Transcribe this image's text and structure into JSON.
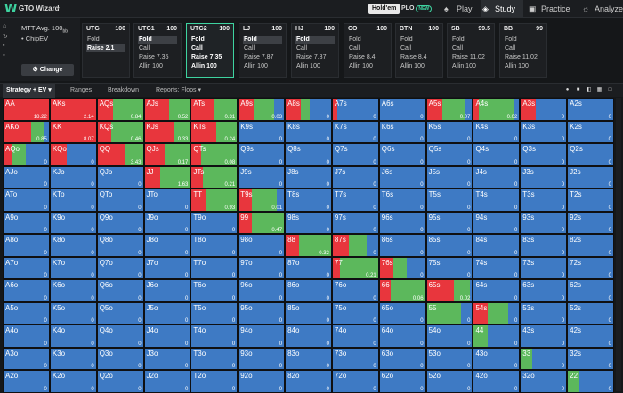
{
  "header": {
    "logo_icon": "W",
    "brand": "GTO Wizard",
    "brand_menu_icon": "chevron-down-icon",
    "game_holdem": "Hold'em",
    "game_plo": "PLO",
    "plo_badge": "NEW",
    "nav": [
      {
        "label": "Play",
        "icon": "spade-icon",
        "active": false
      },
      {
        "label": "Study",
        "icon": "stack-icon",
        "active": true
      },
      {
        "label": "Practice",
        "icon": "controller-icon",
        "active": false
      },
      {
        "label": "Analyze",
        "icon": "bulb-icon",
        "active": false
      }
    ]
  },
  "left_panel": {
    "format": "MTT",
    "depth": "Avg. 100",
    "depth_unit": "bb",
    "model": "ChipEV",
    "change_label": "Change",
    "change_icon": "gear-icon"
  },
  "positions": [
    {
      "name": "UTG",
      "stack": "100",
      "actions": [
        "Fold",
        "Raise 2.1"
      ],
      "selected": 1,
      "active": false
    },
    {
      "name": "UTG1",
      "stack": "100",
      "actions": [
        "Fold",
        "Call",
        "Raise 7.35",
        "Allin 100"
      ],
      "selected": 0,
      "active": false
    },
    {
      "name": "UTG2",
      "stack": "100",
      "actions": [
        "Fold",
        "Call",
        "Raise 7.35",
        "Allin 100"
      ],
      "selected": -1,
      "active": true
    },
    {
      "name": "LJ",
      "stack": "100",
      "actions": [
        "Fold",
        "Call",
        "Raise 7.87",
        "Allin 100"
      ],
      "selected": 0,
      "active": false
    },
    {
      "name": "HJ",
      "stack": "100",
      "actions": [
        "Fold",
        "Call",
        "Raise 7.87",
        "Allin 100"
      ],
      "selected": 0,
      "active": false
    },
    {
      "name": "CO",
      "stack": "100",
      "actions": [
        "Fold",
        "Call",
        "Raise 8.4",
        "Allin 100"
      ],
      "selected": -1,
      "active": false
    },
    {
      "name": "BTN",
      "stack": "100",
      "actions": [
        "Fold",
        "Call",
        "Raise 8.4",
        "Allin 100"
      ],
      "selected": -1,
      "active": false
    },
    {
      "name": "SB",
      "stack": "99.5",
      "actions": [
        "Fold",
        "Call",
        "Raise 11.02",
        "Allin 100"
      ],
      "selected": -1,
      "active": false
    },
    {
      "name": "BB",
      "stack": "99",
      "actions": [
        "Fold",
        "Call",
        "Raise 11.02",
        "Allin 100"
      ],
      "selected": -1,
      "active": false
    }
  ],
  "toolbar": {
    "tabs": [
      "Strategy + EV",
      "Ranges",
      "Breakdown",
      "Reports: Flops"
    ],
    "strategy_menu_icon": "chevron-down-icon",
    "reports_menu_icon": "chevron-down-icon",
    "view_icons": [
      "settings-circle-icon",
      "view-square-icon",
      "view-split-icon",
      "view-grid-icon",
      "view-full-icon"
    ]
  },
  "colors": {
    "fold": "#3e7ac4",
    "call": "#5cb85c",
    "raise": "#e8363d",
    "grid_bg": "#0f1012"
  },
  "grid": [
    [
      {
        "h": "AA",
        "ev": "18.22",
        "r": 1,
        "c": 0
      },
      {
        "h": "AKs",
        "ev": "2.14",
        "r": 1,
        "c": 0
      },
      {
        "h": "AQs",
        "ev": "0.84",
        "r": 0.35,
        "c": 0.65
      },
      {
        "h": "AJs",
        "ev": "0.52",
        "r": 0.55,
        "c": 0.45
      },
      {
        "h": "ATs",
        "ev": "0.31",
        "r": 0.5,
        "c": 0.5
      },
      {
        "h": "A9s",
        "ev": "0.03",
        "r": 0.33,
        "c": 0.45
      },
      {
        "h": "A8s",
        "ev": "0",
        "r": 0.33,
        "c": 0.2
      },
      {
        "h": "A7s",
        "ev": "0",
        "r": 0.1,
        "c": 0
      },
      {
        "h": "A6s",
        "ev": "0",
        "r": 0,
        "c": 0
      },
      {
        "h": "A5s",
        "ev": "0.07",
        "r": 0.35,
        "c": 0.5
      },
      {
        "h": "A4s",
        "ev": "0.02",
        "r": 0.1,
        "c": 0.8
      },
      {
        "h": "A3s",
        "ev": "0",
        "r": 0.33,
        "c": 0
      },
      {
        "h": "A2s",
        "ev": "0",
        "r": 0,
        "c": 0
      }
    ],
    [
      {
        "h": "AKo",
        "ev": "0.85",
        "r": 0.6,
        "c": 0.3
      },
      {
        "h": "KK",
        "ev": "8.07",
        "r": 1,
        "c": 0
      },
      {
        "h": "KQs",
        "ev": "0.46",
        "r": 0.3,
        "c": 0.7
      },
      {
        "h": "KJs",
        "ev": "0.33",
        "r": 0.65,
        "c": 0.35
      },
      {
        "h": "KTs",
        "ev": "0.24",
        "r": 0.55,
        "c": 0.45
      },
      {
        "h": "K9s",
        "ev": "0",
        "r": 0,
        "c": 0
      },
      {
        "h": "K8s",
        "ev": "0",
        "r": 0,
        "c": 0
      },
      {
        "h": "K7s",
        "ev": "0",
        "r": 0,
        "c": 0
      },
      {
        "h": "K6s",
        "ev": "0",
        "r": 0,
        "c": 0
      },
      {
        "h": "K5s",
        "ev": "0",
        "r": 0,
        "c": 0
      },
      {
        "h": "K4s",
        "ev": "0",
        "r": 0,
        "c": 0
      },
      {
        "h": "K3s",
        "ev": "0",
        "r": 0,
        "c": 0
      },
      {
        "h": "K2s",
        "ev": "0",
        "r": 0,
        "c": 0
      }
    ],
    [
      {
        "h": "AQo",
        "ev": "0",
        "r": 0.2,
        "c": 0.3
      },
      {
        "h": "KQo",
        "ev": "0",
        "r": 0.35,
        "c": 0
      },
      {
        "h": "QQ",
        "ev": "3.43",
        "r": 0.6,
        "c": 0.4
      },
      {
        "h": "QJs",
        "ev": "0.17",
        "r": 0.45,
        "c": 0.55
      },
      {
        "h": "QTs",
        "ev": "0.08",
        "r": 0.2,
        "c": 0.8
      },
      {
        "h": "Q9s",
        "ev": "0",
        "r": 0,
        "c": 0
      },
      {
        "h": "Q8s",
        "ev": "0",
        "r": 0,
        "c": 0
      },
      {
        "h": "Q7s",
        "ev": "0",
        "r": 0,
        "c": 0
      },
      {
        "h": "Q6s",
        "ev": "0",
        "r": 0,
        "c": 0
      },
      {
        "h": "Q5s",
        "ev": "0",
        "r": 0,
        "c": 0
      },
      {
        "h": "Q4s",
        "ev": "0",
        "r": 0,
        "c": 0
      },
      {
        "h": "Q3s",
        "ev": "0",
        "r": 0,
        "c": 0
      },
      {
        "h": "Q2s",
        "ev": "0",
        "r": 0,
        "c": 0
      }
    ],
    [
      {
        "h": "AJo",
        "ev": "0",
        "r": 0,
        "c": 0
      },
      {
        "h": "KJo",
        "ev": "0",
        "r": 0,
        "c": 0
      },
      {
        "h": "QJo",
        "ev": "0",
        "r": 0,
        "c": 0
      },
      {
        "h": "JJ",
        "ev": "1.63",
        "r": 0.35,
        "c": 0.65
      },
      {
        "h": "JTs",
        "ev": "0.21",
        "r": 0.25,
        "c": 0.75
      },
      {
        "h": "J9s",
        "ev": "0",
        "r": 0,
        "c": 0
      },
      {
        "h": "J8s",
        "ev": "0",
        "r": 0,
        "c": 0
      },
      {
        "h": "J7s",
        "ev": "0",
        "r": 0,
        "c": 0
      },
      {
        "h": "J6s",
        "ev": "0",
        "r": 0,
        "c": 0
      },
      {
        "h": "J5s",
        "ev": "0",
        "r": 0,
        "c": 0
      },
      {
        "h": "J4s",
        "ev": "0",
        "r": 0,
        "c": 0
      },
      {
        "h": "J3s",
        "ev": "0",
        "r": 0,
        "c": 0
      },
      {
        "h": "J2s",
        "ev": "0",
        "r": 0,
        "c": 0
      }
    ],
    [
      {
        "h": "ATo",
        "ev": "0",
        "r": 0,
        "c": 0
      },
      {
        "h": "KTo",
        "ev": "0",
        "r": 0,
        "c": 0
      },
      {
        "h": "QTo",
        "ev": "0",
        "r": 0,
        "c": 0
      },
      {
        "h": "JTo",
        "ev": "0",
        "r": 0,
        "c": 0
      },
      {
        "h": "TT",
        "ev": "0.93",
        "r": 0.3,
        "c": 0.7
      },
      {
        "h": "T9s",
        "ev": "0.01",
        "r": 0.3,
        "c": 0.55
      },
      {
        "h": "T8s",
        "ev": "0",
        "r": 0,
        "c": 0
      },
      {
        "h": "T7s",
        "ev": "0",
        "r": 0,
        "c": 0
      },
      {
        "h": "T6s",
        "ev": "0",
        "r": 0,
        "c": 0
      },
      {
        "h": "T5s",
        "ev": "0",
        "r": 0,
        "c": 0
      },
      {
        "h": "T4s",
        "ev": "0",
        "r": 0,
        "c": 0
      },
      {
        "h": "T3s",
        "ev": "0",
        "r": 0,
        "c": 0
      },
      {
        "h": "T2s",
        "ev": "0",
        "r": 0,
        "c": 0
      }
    ],
    [
      {
        "h": "A9o",
        "ev": "0",
        "r": 0,
        "c": 0
      },
      {
        "h": "K9o",
        "ev": "0",
        "r": 0,
        "c": 0
      },
      {
        "h": "Q9o",
        "ev": "0",
        "r": 0,
        "c": 0
      },
      {
        "h": "J9o",
        "ev": "0",
        "r": 0,
        "c": 0
      },
      {
        "h": "T9o",
        "ev": "0",
        "r": 0,
        "c": 0
      },
      {
        "h": "99",
        "ev": "0.47",
        "r": 0.3,
        "c": 0.7
      },
      {
        "h": "98s",
        "ev": "0",
        "r": 0,
        "c": 0
      },
      {
        "h": "97s",
        "ev": "0",
        "r": 0,
        "c": 0
      },
      {
        "h": "96s",
        "ev": "0",
        "r": 0,
        "c": 0
      },
      {
        "h": "95s",
        "ev": "0",
        "r": 0,
        "c": 0
      },
      {
        "h": "94s",
        "ev": "0",
        "r": 0,
        "c": 0
      },
      {
        "h": "93s",
        "ev": "0",
        "r": 0,
        "c": 0
      },
      {
        "h": "92s",
        "ev": "0",
        "r": 0,
        "c": 0
      }
    ],
    [
      {
        "h": "A8o",
        "ev": "0",
        "r": 0,
        "c": 0
      },
      {
        "h": "K8o",
        "ev": "0",
        "r": 0,
        "c": 0
      },
      {
        "h": "Q8o",
        "ev": "0",
        "r": 0,
        "c": 0
      },
      {
        "h": "J8o",
        "ev": "0",
        "r": 0,
        "c": 0
      },
      {
        "h": "T8o",
        "ev": "0",
        "r": 0,
        "c": 0
      },
      {
        "h": "98o",
        "ev": "0",
        "r": 0,
        "c": 0
      },
      {
        "h": "88",
        "ev": "0.32",
        "r": 0.3,
        "c": 0.7
      },
      {
        "h": "87s",
        "ev": "0",
        "r": 0.35,
        "c": 0.4
      },
      {
        "h": "86s",
        "ev": "0",
        "r": 0,
        "c": 0
      },
      {
        "h": "85s",
        "ev": "0",
        "r": 0,
        "c": 0
      },
      {
        "h": "84s",
        "ev": "0",
        "r": 0,
        "c": 0
      },
      {
        "h": "83s",
        "ev": "0",
        "r": 0,
        "c": 0
      },
      {
        "h": "82s",
        "ev": "0",
        "r": 0,
        "c": 0
      }
    ],
    [
      {
        "h": "A7o",
        "ev": "0",
        "r": 0,
        "c": 0
      },
      {
        "h": "K7o",
        "ev": "0",
        "r": 0,
        "c": 0
      },
      {
        "h": "Q7o",
        "ev": "0",
        "r": 0,
        "c": 0
      },
      {
        "h": "J7o",
        "ev": "0",
        "r": 0,
        "c": 0
      },
      {
        "h": "T7o",
        "ev": "0",
        "r": 0,
        "c": 0
      },
      {
        "h": "97o",
        "ev": "0",
        "r": 0,
        "c": 0
      },
      {
        "h": "87o",
        "ev": "0",
        "r": 0,
        "c": 0
      },
      {
        "h": "77",
        "ev": "0.21",
        "r": 0.15,
        "c": 0.85
      },
      {
        "h": "76s",
        "ev": "0",
        "r": 0.3,
        "c": 0.3
      },
      {
        "h": "75s",
        "ev": "0",
        "r": 0,
        "c": 0
      },
      {
        "h": "74s",
        "ev": "0",
        "r": 0,
        "c": 0
      },
      {
        "h": "73s",
        "ev": "0",
        "r": 0,
        "c": 0
      },
      {
        "h": "72s",
        "ev": "0",
        "r": 0,
        "c": 0
      }
    ],
    [
      {
        "h": "A6o",
        "ev": "0",
        "r": 0,
        "c": 0
      },
      {
        "h": "K6o",
        "ev": "0",
        "r": 0,
        "c": 0
      },
      {
        "h": "Q6o",
        "ev": "0",
        "r": 0,
        "c": 0
      },
      {
        "h": "J6o",
        "ev": "0",
        "r": 0,
        "c": 0
      },
      {
        "h": "T6o",
        "ev": "0",
        "r": 0,
        "c": 0
      },
      {
        "h": "96o",
        "ev": "0",
        "r": 0,
        "c": 0
      },
      {
        "h": "86o",
        "ev": "0",
        "r": 0,
        "c": 0
      },
      {
        "h": "76o",
        "ev": "0",
        "r": 0,
        "c": 0
      },
      {
        "h": "66",
        "ev": "0.06",
        "r": 0.25,
        "c": 0.75
      },
      {
        "h": "65s",
        "ev": "0.02",
        "r": 0.6,
        "c": 0.35
      },
      {
        "h": "64s",
        "ev": "0",
        "r": 0,
        "c": 0
      },
      {
        "h": "63s",
        "ev": "0",
        "r": 0,
        "c": 0
      },
      {
        "h": "62s",
        "ev": "0",
        "r": 0,
        "c": 0
      }
    ],
    [
      {
        "h": "A5o",
        "ev": "0",
        "r": 0,
        "c": 0
      },
      {
        "h": "K5o",
        "ev": "0",
        "r": 0,
        "c": 0
      },
      {
        "h": "Q5o",
        "ev": "0",
        "r": 0,
        "c": 0
      },
      {
        "h": "J5o",
        "ev": "0",
        "r": 0,
        "c": 0
      },
      {
        "h": "T5o",
        "ev": "0",
        "r": 0,
        "c": 0
      },
      {
        "h": "95o",
        "ev": "0",
        "r": 0,
        "c": 0
      },
      {
        "h": "85o",
        "ev": "0",
        "r": 0,
        "c": 0
      },
      {
        "h": "75o",
        "ev": "0",
        "r": 0,
        "c": 0
      },
      {
        "h": "65o",
        "ev": "0",
        "r": 0,
        "c": 0
      },
      {
        "h": "55",
        "ev": "0",
        "r": 0,
        "c": 0.75
      },
      {
        "h": "54s",
        "ev": "0",
        "r": 0.3,
        "c": 0.45
      },
      {
        "h": "53s",
        "ev": "0",
        "r": 0,
        "c": 0
      },
      {
        "h": "52s",
        "ev": "0",
        "r": 0,
        "c": 0
      }
    ],
    [
      {
        "h": "A4o",
        "ev": "0",
        "r": 0,
        "c": 0
      },
      {
        "h": "K4o",
        "ev": "0",
        "r": 0,
        "c": 0
      },
      {
        "h": "Q4o",
        "ev": "0",
        "r": 0,
        "c": 0
      },
      {
        "h": "J4o",
        "ev": "0",
        "r": 0,
        "c": 0
      },
      {
        "h": "T4o",
        "ev": "0",
        "r": 0,
        "c": 0
      },
      {
        "h": "94o",
        "ev": "0",
        "r": 0,
        "c": 0
      },
      {
        "h": "84o",
        "ev": "0",
        "r": 0,
        "c": 0
      },
      {
        "h": "74o",
        "ev": "0",
        "r": 0,
        "c": 0
      },
      {
        "h": "64o",
        "ev": "0",
        "r": 0,
        "c": 0
      },
      {
        "h": "54o",
        "ev": "0",
        "r": 0,
        "c": 0
      },
      {
        "h": "44",
        "ev": "0",
        "r": 0,
        "c": 0.3
      },
      {
        "h": "43s",
        "ev": "0",
        "r": 0,
        "c": 0
      },
      {
        "h": "42s",
        "ev": "0",
        "r": 0,
        "c": 0
      }
    ],
    [
      {
        "h": "A3o",
        "ev": "0",
        "r": 0,
        "c": 0
      },
      {
        "h": "K3o",
        "ev": "0",
        "r": 0,
        "c": 0
      },
      {
        "h": "Q3o",
        "ev": "0",
        "r": 0,
        "c": 0
      },
      {
        "h": "J3o",
        "ev": "0",
        "r": 0,
        "c": 0
      },
      {
        "h": "T3o",
        "ev": "0",
        "r": 0,
        "c": 0
      },
      {
        "h": "93o",
        "ev": "0",
        "r": 0,
        "c": 0
      },
      {
        "h": "83o",
        "ev": "0",
        "r": 0,
        "c": 0
      },
      {
        "h": "73o",
        "ev": "0",
        "r": 0,
        "c": 0
      },
      {
        "h": "63o",
        "ev": "0",
        "r": 0,
        "c": 0
      },
      {
        "h": "53o",
        "ev": "0",
        "r": 0,
        "c": 0
      },
      {
        "h": "43o",
        "ev": "0",
        "r": 0,
        "c": 0
      },
      {
        "h": "33",
        "ev": "0",
        "r": 0,
        "c": 0.25
      },
      {
        "h": "32s",
        "ev": "0",
        "r": 0,
        "c": 0
      }
    ],
    [
      {
        "h": "A2o",
        "ev": "0",
        "r": 0,
        "c": 0
      },
      {
        "h": "K2o",
        "ev": "0",
        "r": 0,
        "c": 0
      },
      {
        "h": "Q2o",
        "ev": "0",
        "r": 0,
        "c": 0
      },
      {
        "h": "J2o",
        "ev": "0",
        "r": 0,
        "c": 0
      },
      {
        "h": "T2o",
        "ev": "0",
        "r": 0,
        "c": 0
      },
      {
        "h": "92o",
        "ev": "0",
        "r": 0,
        "c": 0
      },
      {
        "h": "82o",
        "ev": "0",
        "r": 0,
        "c": 0
      },
      {
        "h": "72o",
        "ev": "0",
        "r": 0,
        "c": 0
      },
      {
        "h": "62o",
        "ev": "0",
        "r": 0,
        "c": 0
      },
      {
        "h": "52o",
        "ev": "0",
        "r": 0,
        "c": 0
      },
      {
        "h": "42o",
        "ev": "0",
        "r": 0,
        "c": 0
      },
      {
        "h": "32o",
        "ev": "0",
        "r": 0,
        "c": 0
      },
      {
        "h": "22",
        "ev": "0",
        "r": 0,
        "c": 0.25
      }
    ]
  ]
}
